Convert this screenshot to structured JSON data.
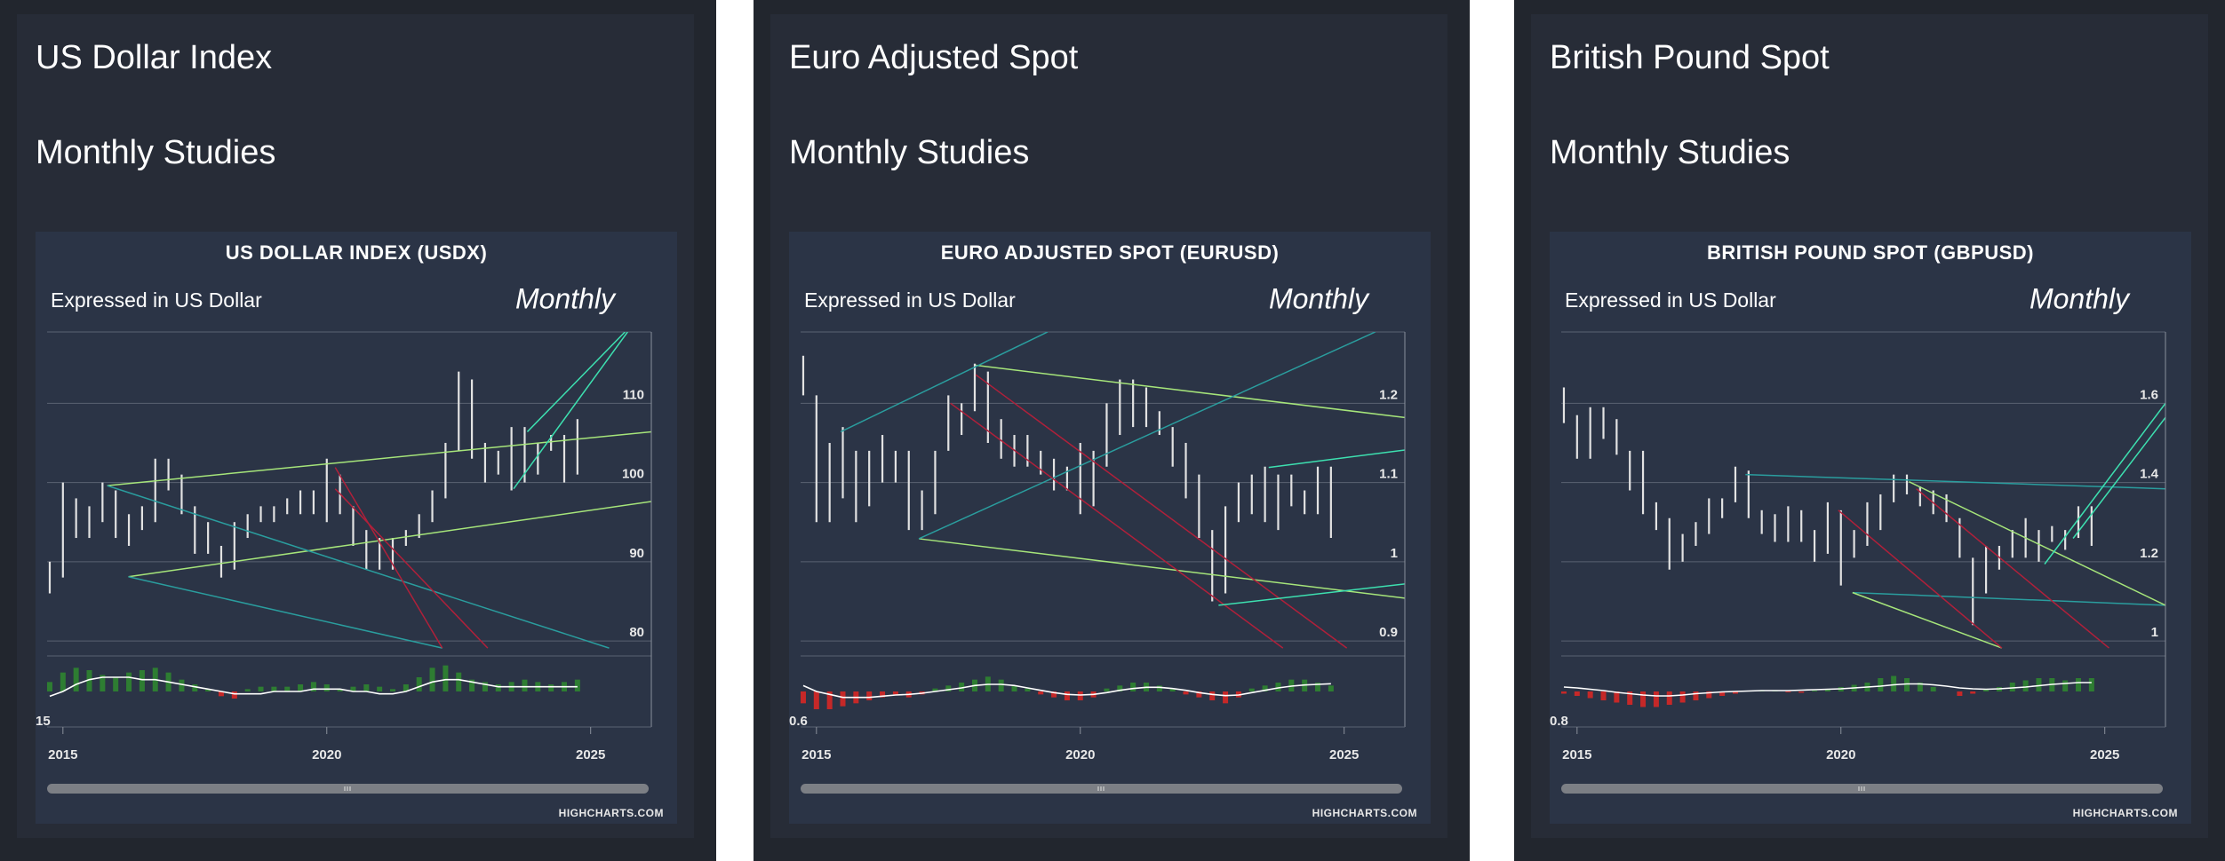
{
  "panels": [
    {
      "heading": "US Dollar Index",
      "subheading": "Monthly Studies"
    },
    {
      "heading": "Euro Adjusted Spot",
      "subheading": "Monthly Studies"
    },
    {
      "heading": "British Pound Spot",
      "subheading": "Monthly Studies"
    }
  ],
  "chart_data": [
    {
      "type": "ohlc",
      "title": "US DOLLAR INDEX (USDX)",
      "subtitle": "Expressed in US Dollar",
      "annotation": "Monthly",
      "credits": "HIGHCHARTS.COM",
      "color": "#e2e2e2",
      "grid": true,
      "xlim": [
        2014.7,
        2026.15
      ],
      "xticks": [
        2015,
        2020,
        2025
      ],
      "ylim": [
        79,
        119
      ],
      "yticks": [
        80,
        90,
        100,
        110
      ],
      "x": [
        2014.75,
        2015,
        2015.25,
        2015.5,
        2015.75,
        2016,
        2016.25,
        2016.5,
        2016.75,
        2017,
        2017.25,
        2017.5,
        2017.75,
        2018,
        2018.25,
        2018.5,
        2018.75,
        2019,
        2019.25,
        2019.5,
        2019.75,
        2020,
        2020.25,
        2020.5,
        2020.75,
        2021,
        2021.25,
        2021.5,
        2021.75,
        2022,
        2022.25,
        2022.5,
        2022.75,
        2023,
        2023.25,
        2023.5,
        2023.75,
        2024,
        2024.25,
        2024.5,
        2024.75
      ],
      "high": [
        90,
        100,
        98,
        97,
        100,
        99,
        96,
        97,
        103,
        103,
        101,
        97,
        95,
        92,
        95,
        96,
        97,
        97,
        98,
        99,
        99,
        103,
        101,
        97,
        94,
        93,
        93,
        94,
        96,
        99,
        105,
        114,
        113,
        105,
        104,
        107,
        107,
        105,
        106,
        106,
        108
      ],
      "low": [
        86,
        88,
        93,
        93,
        95,
        93,
        92,
        94,
        95,
        99,
        96,
        91,
        91,
        88,
        89,
        93,
        95,
        95,
        96,
        96,
        96,
        95,
        96,
        92,
        89,
        89,
        89,
        92,
        93,
        95,
        98,
        104,
        103,
        100,
        101,
        99,
        100,
        101,
        104,
        100,
        101
      ],
      "studies": [
        {
          "color": "#a6e57a",
          "points": [
            [
              2015.84,
              99.6
            ],
            [
              2026.15,
              106.4
            ]
          ]
        },
        {
          "color": "#a6e57a",
          "points": [
            [
              2016.24,
              88.1
            ],
            [
              2026.15,
              97.6
            ]
          ]
        },
        {
          "color": "#2a9d9e",
          "points": [
            [
              2015.84,
              99.6
            ],
            [
              2025.35,
              79.1
            ]
          ]
        },
        {
          "color": "#2a9d9e",
          "points": [
            [
              2016.24,
              88.1
            ],
            [
              2022.19,
              79.1
            ]
          ]
        },
        {
          "color": "#b0203a",
          "points": [
            [
              2020.16,
              101.9
            ],
            [
              2022.19,
              79.1
            ]
          ]
        },
        {
          "color": "#b0203a",
          "points": [
            [
              2020.16,
              99.2
            ],
            [
              2023.05,
              79.1
            ]
          ]
        },
        {
          "color": "#3de0b0",
          "points": [
            [
              2023.54,
              99.2
            ],
            [
              2025.7,
              119
            ]
          ]
        },
        {
          "color": "#3de0b0",
          "points": [
            [
              2023.8,
              106.4
            ],
            [
              2025.65,
              119
            ]
          ]
        }
      ],
      "oscillator": {
        "ylim": [
          -15,
          15
        ],
        "yticks": [
          {
            "value": -15,
            "label": "15"
          }
        ],
        "up_color": "#2e7d32",
        "down_color": "#c62828",
        "line_color": "#ffffff",
        "values": [
          4,
          8,
          10,
          9,
          7,
          6,
          8,
          9,
          10,
          8,
          5,
          3,
          1,
          -2,
          -3,
          1,
          2,
          2,
          2,
          3,
          4,
          3,
          1,
          2,
          3,
          2,
          1,
          3,
          6,
          10,
          11,
          8,
          5,
          4,
          3,
          4,
          5,
          4,
          3,
          4,
          5
        ],
        "line": [
          -2,
          0,
          3,
          5,
          6,
          6,
          6,
          5,
          5,
          4,
          3,
          2,
          1,
          0,
          -1,
          -1,
          -1,
          0,
          0,
          0,
          1,
          1,
          1,
          0,
          0,
          -1,
          -1,
          0,
          2,
          4,
          5,
          5,
          4,
          3,
          2,
          2,
          2,
          2,
          2,
          2,
          2
        ]
      }
    },
    {
      "type": "ohlc",
      "title": "EURO ADJUSTED SPOT (EURUSD)",
      "subtitle": "Expressed in US Dollar",
      "annotation": "Monthly",
      "credits": "HIGHCHARTS.COM",
      "color": "#e2e2e2",
      "grid": true,
      "xlim": [
        2014.7,
        2026.15
      ],
      "xticks": [
        2015,
        2020,
        2025
      ],
      "ylim": [
        0.89,
        1.29
      ],
      "yticks": [
        0.9,
        1,
        1.1,
        1.2
      ],
      "x": [
        2014.75,
        2015,
        2015.25,
        2015.5,
        2015.75,
        2016,
        2016.25,
        2016.5,
        2016.75,
        2017,
        2017.25,
        2017.5,
        2017.75,
        2018,
        2018.25,
        2018.5,
        2018.75,
        2019,
        2019.25,
        2019.5,
        2019.75,
        2020,
        2020.25,
        2020.5,
        2020.75,
        2021,
        2021.25,
        2021.5,
        2021.75,
        2022,
        2022.25,
        2022.5,
        2022.75,
        2023,
        2023.25,
        2023.5,
        2023.75,
        2024,
        2024.25,
        2024.5,
        2024.75
      ],
      "high": [
        1.26,
        1.21,
        1.15,
        1.17,
        1.14,
        1.14,
        1.16,
        1.14,
        1.14,
        1.09,
        1.14,
        1.21,
        1.2,
        1.25,
        1.24,
        1.18,
        1.16,
        1.16,
        1.14,
        1.13,
        1.12,
        1.15,
        1.14,
        1.2,
        1.23,
        1.23,
        1.22,
        1.19,
        1.17,
        1.15,
        1.11,
        1.04,
        1.07,
        1.1,
        1.11,
        1.12,
        1.11,
        1.11,
        1.09,
        1.12,
        1.12
      ],
      "low": [
        1.21,
        1.05,
        1.05,
        1.08,
        1.05,
        1.07,
        1.1,
        1.1,
        1.04,
        1.04,
        1.06,
        1.14,
        1.16,
        1.19,
        1.15,
        1.13,
        1.12,
        1.12,
        1.11,
        1.09,
        1.09,
        1.06,
        1.07,
        1.12,
        1.16,
        1.17,
        1.17,
        1.16,
        1.12,
        1.08,
        1.03,
        0.95,
        0.96,
        1.05,
        1.06,
        1.05,
        1.04,
        1.07,
        1.06,
        1.06,
        1.03
      ],
      "studies": [
        {
          "color": "#a6e57a",
          "points": [
            [
              2018.02,
              1.248
            ],
            [
              2026.15,
              1.182
            ]
          ]
        },
        {
          "color": "#a6e57a",
          "points": [
            [
              2016.94,
              1.029
            ],
            [
              2026.15,
              0.954
            ]
          ]
        },
        {
          "color": "#2a9d9e",
          "points": [
            [
              2015.46,
              1.164
            ],
            [
              2019.38,
              1.29
            ]
          ]
        },
        {
          "color": "#2a9d9e",
          "points": [
            [
              2016.94,
              1.029
            ],
            [
              2025.59,
              1.29
            ]
          ]
        },
        {
          "color": "#b0203a",
          "points": [
            [
              2017.54,
              1.2
            ],
            [
              2023.84,
              0.891
            ]
          ]
        },
        {
          "color": "#b0203a",
          "points": [
            [
              2018.02,
              1.236
            ],
            [
              2025.05,
              0.891
            ]
          ]
        },
        {
          "color": "#3de0b0",
          "points": [
            [
              2023.57,
              1.119
            ],
            [
              2026.15,
              1.141
            ]
          ]
        },
        {
          "color": "#3de0b0",
          "points": [
            [
              2022.62,
              0.945
            ],
            [
              2026.15,
              0.972
            ]
          ]
        }
      ],
      "oscillator": {
        "ylim": [
          -0.6,
          0.6
        ],
        "yticks": [
          {
            "value": -0.6,
            "label": "0.6"
          }
        ],
        "up_color": "#2e7d32",
        "down_color": "#c62828",
        "line_color": "#ffffff",
        "values": [
          -0.2,
          -0.3,
          -0.3,
          -0.25,
          -0.2,
          -0.15,
          -0.1,
          -0.05,
          -0.1,
          -0.05,
          0.05,
          0.1,
          0.15,
          0.2,
          0.25,
          0.2,
          0.1,
          0.05,
          -0.05,
          -0.1,
          -0.15,
          -0.15,
          -0.1,
          0.05,
          0.1,
          0.15,
          0.15,
          0.1,
          0.05,
          -0.05,
          -0.1,
          -0.15,
          -0.2,
          -0.1,
          0.05,
          0.1,
          0.15,
          0.2,
          0.2,
          0.15,
          0.1
        ],
        "line": [
          0.1,
          0,
          -0.05,
          -0.1,
          -0.1,
          -0.1,
          -0.08,
          -0.06,
          -0.05,
          -0.03,
          0,
          0.03,
          0.06,
          0.1,
          0.12,
          0.12,
          0.1,
          0.06,
          0.02,
          -0.02,
          -0.05,
          -0.06,
          -0.05,
          -0.02,
          0.02,
          0.05,
          0.07,
          0.07,
          0.05,
          0.02,
          -0.02,
          -0.05,
          -0.07,
          -0.06,
          -0.02,
          0.02,
          0.06,
          0.09,
          0.11,
          0.12,
          0.13
        ]
      }
    },
    {
      "type": "ohlc",
      "title": "BRITISH POUND SPOT (GBPUSD)",
      "subtitle": "Expressed in US Dollar",
      "annotation": "Monthly",
      "credits": "HIGHCHARTS.COM",
      "color": "#e2e2e2",
      "grid": true,
      "xlim": [
        2014.7,
        2026.15
      ],
      "xticks": [
        2015,
        2020,
        2025
      ],
      "ylim": [
        0.98,
        1.78
      ],
      "yticks": [
        1,
        1.2,
        1.4,
        1.6
      ],
      "x": [
        2014.75,
        2015,
        2015.25,
        2015.5,
        2015.75,
        2016,
        2016.25,
        2016.5,
        2016.75,
        2017,
        2017.25,
        2017.5,
        2017.75,
        2018,
        2018.25,
        2018.5,
        2018.75,
        2019,
        2019.25,
        2019.5,
        2019.75,
        2020,
        2020.25,
        2020.5,
        2020.75,
        2021,
        2021.25,
        2021.5,
        2021.75,
        2022,
        2022.25,
        2022.5,
        2022.75,
        2023,
        2023.25,
        2023.5,
        2023.75,
        2024,
        2024.25,
        2024.5,
        2024.75
      ],
      "high": [
        1.64,
        1.57,
        1.59,
        1.59,
        1.56,
        1.48,
        1.48,
        1.35,
        1.31,
        1.27,
        1.3,
        1.36,
        1.36,
        1.44,
        1.43,
        1.33,
        1.32,
        1.34,
        1.33,
        1.28,
        1.35,
        1.33,
        1.28,
        1.35,
        1.37,
        1.42,
        1.42,
        1.39,
        1.38,
        1.37,
        1.31,
        1.21,
        1.24,
        1.24,
        1.28,
        1.31,
        1.28,
        1.29,
        1.28,
        1.34,
        1.34
      ],
      "low": [
        1.55,
        1.46,
        1.46,
        1.51,
        1.47,
        1.38,
        1.32,
        1.28,
        1.18,
        1.2,
        1.24,
        1.27,
        1.31,
        1.35,
        1.31,
        1.27,
        1.25,
        1.25,
        1.25,
        1.2,
        1.22,
        1.14,
        1.21,
        1.24,
        1.28,
        1.35,
        1.37,
        1.34,
        1.32,
        1.3,
        1.21,
        1.04,
        1.12,
        1.18,
        1.21,
        1.21,
        1.2,
        1.25,
        1.23,
        1.26,
        1.24
      ],
      "studies": [
        {
          "color": "#2a9d9e",
          "points": [
            [
              2018.19,
              1.42
            ],
            [
              2026.15,
              1.384
            ]
          ]
        },
        {
          "color": "#2a9d9e",
          "points": [
            [
              2020.22,
              1.122
            ],
            [
              2026.15,
              1.09
            ]
          ]
        },
        {
          "color": "#a6e57a",
          "points": [
            [
              2021.29,
              1.402
            ],
            [
              2026.15,
              1.09
            ]
          ]
        },
        {
          "color": "#a6e57a",
          "points": [
            [
              2020.22,
              1.122
            ],
            [
              2023.05,
              0.982
            ]
          ]
        },
        {
          "color": "#b0203a",
          "points": [
            [
              2019.95,
              1.33
            ],
            [
              2023.05,
              0.982
            ]
          ]
        },
        {
          "color": "#b0203a",
          "points": [
            [
              2021.43,
              1.384
            ],
            [
              2025.08,
              0.982
            ]
          ]
        },
        {
          "color": "#3de0b0",
          "points": [
            [
              2023.86,
              1.194
            ],
            [
              2026.15,
              1.6
            ]
          ]
        },
        {
          "color": "#3de0b0",
          "points": [
            [
              2024.4,
              1.259
            ],
            [
              2026.15,
              1.564
            ]
          ]
        }
      ],
      "oscillator": {
        "ylim": [
          -0.8,
          0.8
        ],
        "yticks": [
          {
            "value": -0.8,
            "label": "0.8"
          }
        ],
        "up_color": "#2e7d32",
        "down_color": "#c62828",
        "line_color": "#ffffff",
        "values": [
          -0.05,
          -0.1,
          -0.15,
          -0.2,
          -0.25,
          -0.3,
          -0.35,
          -0.35,
          -0.3,
          -0.25,
          -0.2,
          -0.15,
          -0.1,
          -0.05,
          0,
          0.02,
          0.03,
          -0.02,
          -0.03,
          0.02,
          0.05,
          0.1,
          0.15,
          0.2,
          0.3,
          0.35,
          0.3,
          0.2,
          0.1,
          0,
          -0.1,
          -0.05,
          0.05,
          0.1,
          0.2,
          0.25,
          0.3,
          0.3,
          0.25,
          0.3,
          0.3
        ],
        "line": [
          0.1,
          0.08,
          0.05,
          0.02,
          -0.02,
          -0.05,
          -0.08,
          -0.1,
          -0.1,
          -0.08,
          -0.05,
          -0.03,
          -0.01,
          0,
          0.01,
          0.02,
          0.02,
          0.02,
          0.03,
          0.04,
          0.05,
          0.06,
          0.08,
          0.1,
          0.12,
          0.15,
          0.17,
          0.17,
          0.15,
          0.12,
          0.08,
          0.06,
          0.05,
          0.06,
          0.08,
          0.1,
          0.13,
          0.16,
          0.18,
          0.2,
          0.2
        ]
      }
    }
  ]
}
